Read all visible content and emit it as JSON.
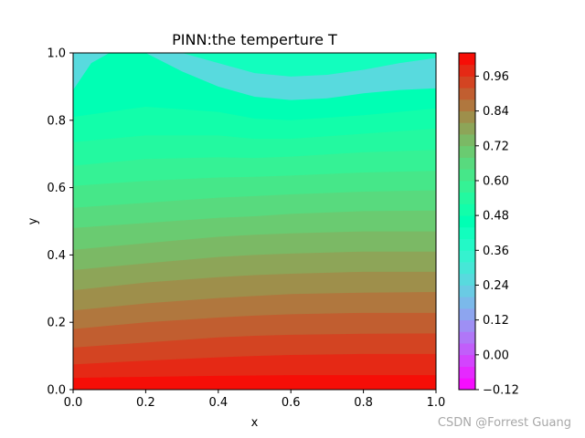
{
  "chart_data": {
    "type": "heatmap",
    "subtype": "filled-contour",
    "title": "PINN:the temperture T",
    "xlabel": "x",
    "ylabel": "y",
    "xlim": [
      0,
      1
    ],
    "ylim": [
      0,
      1
    ],
    "x_ticks": [
      "0.0",
      "0.2",
      "0.4",
      "0.6",
      "0.8",
      "1.0"
    ],
    "y_ticks": [
      "0.0",
      "0.2",
      "0.4",
      "0.6",
      "0.8",
      "1.0"
    ],
    "colormap": "rainbow",
    "levels": {
      "min": -0.12,
      "max": 1.04,
      "step": 0.04
    },
    "colorbar_ticks": [
      "−0.12",
      "0.00",
      "0.12",
      "0.24",
      "0.36",
      "0.48",
      "0.60",
      "0.72",
      "0.84",
      "0.96"
    ],
    "contour_levels": [
      {
        "x": [
          0.0,
          0.2,
          0.4,
          0.5,
          0.6,
          0.8,
          1.0
        ],
        "y": [
          0.035,
          0.038,
          0.041,
          0.042,
          0.043,
          0.043,
          0.043
        ]
      },
      {
        "x": [
          0.0,
          0.2,
          0.4,
          0.5,
          0.6,
          0.8,
          1.0
        ],
        "y": [
          0.075,
          0.086,
          0.096,
          0.1,
          0.103,
          0.106,
          0.106
        ]
      },
      {
        "x": [
          0.0,
          0.2,
          0.4,
          0.5,
          0.6,
          0.8,
          1.0
        ],
        "y": [
          0.125,
          0.14,
          0.155,
          0.16,
          0.163,
          0.166,
          0.167
        ]
      },
      {
        "x": [
          0.0,
          0.2,
          0.4,
          0.5,
          0.6,
          0.8,
          1.0
        ],
        "y": [
          0.18,
          0.2,
          0.214,
          0.22,
          0.224,
          0.228,
          0.228
        ]
      },
      {
        "x": [
          0.0,
          0.2,
          0.4,
          0.5,
          0.6,
          0.8,
          1.0
        ],
        "y": [
          0.235,
          0.256,
          0.272,
          0.278,
          0.284,
          0.288,
          0.29
        ]
      },
      {
        "x": [
          0.0,
          0.2,
          0.4,
          0.5,
          0.6,
          0.8,
          1.0
        ],
        "y": [
          0.295,
          0.318,
          0.334,
          0.34,
          0.344,
          0.35,
          0.35
        ]
      },
      {
        "x": [
          0.0,
          0.2,
          0.4,
          0.5,
          0.6,
          0.8,
          1.0
        ],
        "y": [
          0.355,
          0.375,
          0.394,
          0.4,
          0.404,
          0.41,
          0.41
        ]
      },
      {
        "x": [
          0.0,
          0.2,
          0.4,
          0.5,
          0.6,
          0.8,
          1.0
        ],
        "y": [
          0.415,
          0.435,
          0.454,
          0.46,
          0.464,
          0.47,
          0.47
        ]
      },
      {
        "x": [
          0.0,
          0.2,
          0.4,
          0.5,
          0.6,
          0.8,
          1.0
        ],
        "y": [
          0.48,
          0.495,
          0.51,
          0.515,
          0.522,
          0.53,
          0.532
        ]
      },
      {
        "x": [
          0.0,
          0.2,
          0.4,
          0.5,
          0.6,
          0.8,
          1.0
        ],
        "y": [
          0.54,
          0.555,
          0.57,
          0.575,
          0.58,
          0.588,
          0.592
        ]
      },
      {
        "x": [
          0.0,
          0.2,
          0.4,
          0.5,
          0.6,
          0.8,
          1.0
        ],
        "y": [
          0.605,
          0.62,
          0.63,
          0.632,
          0.636,
          0.645,
          0.65
        ]
      },
      {
        "x": [
          0.0,
          0.2,
          0.4,
          0.5,
          0.6,
          0.8,
          1.0
        ],
        "y": [
          0.665,
          0.685,
          0.69,
          0.688,
          0.692,
          0.705,
          0.712
        ]
      },
      {
        "x": [
          0.0,
          0.2,
          0.4,
          0.5,
          0.6,
          0.8,
          1.0
        ],
        "y": [
          0.735,
          0.755,
          0.755,
          0.745,
          0.745,
          0.76,
          0.775
        ]
      },
      {
        "x": [
          0.0,
          0.2,
          0.4,
          0.5,
          0.6,
          0.8,
          1.0
        ],
        "y": [
          0.81,
          0.84,
          0.825,
          0.805,
          0.8,
          0.815,
          0.835
        ]
      },
      {
        "x": [
          0.0,
          0.05,
          0.1,
          0.2,
          0.3,
          0.4,
          0.5,
          0.6,
          0.7,
          0.8,
          0.9,
          1.0
        ],
        "y": [
          0.89,
          0.97,
          1.0,
          1.0,
          0.945,
          0.9,
          0.87,
          0.86,
          0.865,
          0.88,
          0.89,
          0.895
        ]
      },
      {
        "x": [
          0.3,
          0.4,
          0.5,
          0.6,
          0.7,
          0.8,
          0.9,
          1.0
        ],
        "y": [
          1.0,
          0.97,
          0.94,
          0.93,
          0.935,
          0.95,
          0.97,
          0.985
        ]
      },
      {
        "x": [
          0.32,
          0.4,
          0.5,
          0.6,
          0.7,
          0.75
        ],
        "y": [
          1.0,
          0.985,
          0.965,
          0.96,
          0.975,
          1.0
        ]
      },
      {
        "x": [
          0.36,
          0.4,
          0.5,
          0.6,
          0.68
        ],
        "y": [
          1.0,
          0.992,
          0.98,
          0.982,
          1.0
        ]
      },
      {
        "x": [
          0.4,
          0.5,
          0.6,
          0.63
        ],
        "y": [
          1.0,
          0.99,
          0.995,
          1.0
        ]
      }
    ]
  },
  "watermark": "CSDN @Forrest Guang"
}
